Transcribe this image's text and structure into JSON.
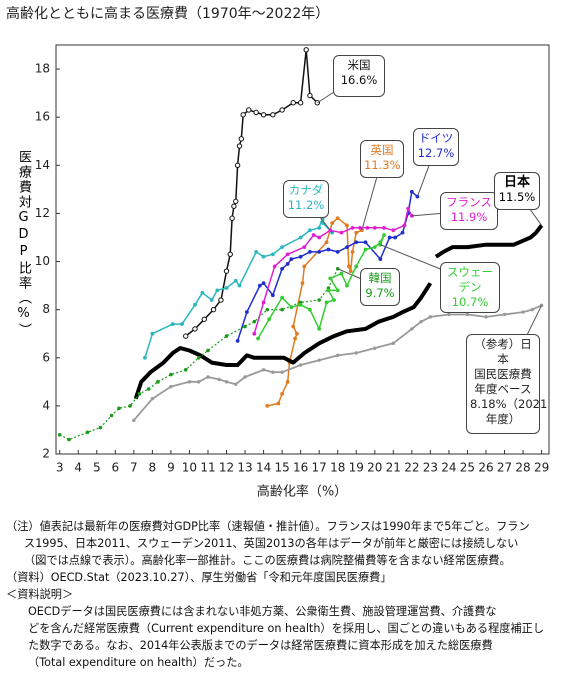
{
  "chart_data": {
    "type": "line",
    "title": "高齢化とともに高まる医療費（1970年～2022年）",
    "x_label": "高齢化率（%）",
    "y_label": "医療費対GDP比率（%）",
    "xlim": [
      2.8,
      29.4
    ],
    "xticks": [
      3,
      4,
      5,
      6,
      7,
      8,
      9,
      10,
      11,
      12,
      13,
      14,
      15,
      16,
      17,
      18,
      19,
      20,
      21,
      22,
      23,
      24,
      25,
      26,
      27,
      28,
      29
    ],
    "ylim": [
      2,
      19
    ],
    "yticks": [
      2,
      4,
      6,
      8,
      10,
      12,
      14,
      16,
      18
    ],
    "series": [
      {
        "name": "米国",
        "color": "#111111",
        "x": [
          9.8,
          10.3,
          10.8,
          11.3,
          11.7,
          12.0,
          12.2,
          12.3,
          12.4,
          12.5,
          12.6,
          12.7,
          12.8,
          12.9,
          13.2,
          13.6,
          14.0,
          14.5,
          15.0,
          15.6,
          16.0,
          16.3,
          16.5,
          16.9
        ],
        "values": [
          6.9,
          7.2,
          7.6,
          8.0,
          8.4,
          9.6,
          10.3,
          11.8,
          12.3,
          12.5,
          14.0,
          14.8,
          15.1,
          16.1,
          16.3,
          16.2,
          16.1,
          16.1,
          16.3,
          16.6,
          16.6,
          18.8,
          16.9,
          16.6
        ],
        "end_label": {
          "value": 16.6,
          "label": "16.6%"
        }
      },
      {
        "name": "英国",
        "color": "#e07b20",
        "x": [
          14.2,
          14.8,
          15.0,
          15.3,
          15.4,
          15.7,
          15.8,
          15.6,
          16.1,
          16.2,
          17.4,
          17.7,
          18.0,
          18.5,
          18.6,
          18.7,
          18.8,
          19.0,
          19.3
        ],
        "values": [
          4.0,
          4.1,
          4.5,
          5.0,
          5.8,
          6.8,
          7.0,
          7.3,
          9.1,
          9.8,
          10.8,
          11.6,
          11.8,
          11.5,
          9.8,
          9.6,
          10.4,
          11.2,
          11.3
        ],
        "end_label": {
          "value": 11.3,
          "label": "11.3%"
        }
      },
      {
        "name": "ドイツ",
        "color": "#1f2fd0",
        "x": [
          12.6,
          13.1,
          13.8,
          14.0,
          14.5,
          15.0,
          15.3,
          15.5,
          16.0,
          16.5,
          17.0,
          17.5,
          18.0,
          18.5,
          19.0,
          19.5,
          20.3,
          20.8,
          21.1,
          21.5,
          21.8,
          22.0,
          22.3
        ],
        "values": [
          6.7,
          7.9,
          9.0,
          9.1,
          8.6,
          9.7,
          9.9,
          10.1,
          10.2,
          10.4,
          10.4,
          10.5,
          10.4,
          10.6,
          10.8,
          10.8,
          10.1,
          11.0,
          11.0,
          11.2,
          12.0,
          12.9,
          12.7
        ],
        "end_label": {
          "value": 12.7,
          "label": "12.7%"
        }
      },
      {
        "name": "カナダ",
        "color": "#2bb7c0",
        "x": [
          7.6,
          8.0,
          9.1,
          9.6,
          10.3,
          10.7,
          11.2,
          11.5,
          12.0,
          12.5,
          12.7,
          13.6,
          14.0,
          14.5,
          15.0,
          16.0,
          16.5,
          17.0,
          17.4,
          17.2,
          17.7
        ],
        "values": [
          6.0,
          7.0,
          7.4,
          7.4,
          8.2,
          8.7,
          8.4,
          8.8,
          8.9,
          9.2,
          9.0,
          10.4,
          10.2,
          10.3,
          10.6,
          11.0,
          11.3,
          11.4,
          12.4,
          11.6,
          11.2
        ],
        "end_label": {
          "value": 11.2,
          "label": "11.2%"
        }
      },
      {
        "name": "フランス",
        "color": "#e020d0",
        "x": [
          13.5,
          14.0,
          14.6,
          15.3,
          16.2,
          16.7,
          17.0,
          17.6,
          18.2,
          18.8,
          19.2,
          19.6,
          20.0,
          20.5,
          21.0,
          21.6,
          21.8,
          22.0
        ],
        "values": [
          7.0,
          8.3,
          9.8,
          10.3,
          10.6,
          11.1,
          11.0,
          11.3,
          11.2,
          11.4,
          11.4,
          11.4,
          11.4,
          11.4,
          11.3,
          11.5,
          12.2,
          11.9
        ],
        "end_label": {
          "value": 11.9,
          "label": "11.9%"
        }
      },
      {
        "name": "日本",
        "color": "#000000",
        "x": [
          7.1,
          7.4,
          7.9,
          8.6,
          9.1,
          9.5,
          10.0,
          10.6,
          11.2,
          12.0,
          12.6,
          13.1,
          13.5,
          14.1,
          14.6,
          15.1,
          15.6,
          16.2,
          17.0,
          17.8,
          18.5,
          19.5,
          20.2,
          21.0,
          21.5,
          22.1,
          22.5,
          23.0,
          23.15,
          23.3,
          23.7,
          24.2,
          25.0,
          26.0,
          27.0,
          27.5,
          28.1,
          28.4,
          28.7,
          29.0
        ],
        "values": [
          4.3,
          5.0,
          5.4,
          5.8,
          6.2,
          6.4,
          6.3,
          6.1,
          5.8,
          5.7,
          5.7,
          6.1,
          6.0,
          6.0,
          6.0,
          6.0,
          5.8,
          6.2,
          6.6,
          6.9,
          7.1,
          7.2,
          7.5,
          7.7,
          7.9,
          8.1,
          8.5,
          9.1,
          null,
          10.2,
          10.4,
          10.6,
          10.6,
          10.7,
          10.7,
          10.7,
          10.9,
          11.0,
          11.2,
          11.5
        ],
        "end_label": {
          "value": 11.5,
          "label": "11.5%"
        }
      },
      {
        "name": "韓国",
        "color": "#1a9a1a",
        "x": [
          3.0,
          3.5,
          4.5,
          5.2,
          5.8,
          6.2,
          6.8,
          7.3,
          7.8,
          8.3,
          9.0,
          9.8,
          10.5,
          11.0,
          12.0,
          13.0,
          13.5,
          14.2,
          15.0,
          16.0,
          17.0,
          17.5,
          18.0
        ],
        "values": [
          2.8,
          2.6,
          2.9,
          3.1,
          3.6,
          3.9,
          4.0,
          4.5,
          4.7,
          5.0,
          5.3,
          5.5,
          6.0,
          6.3,
          6.9,
          7.3,
          7.5,
          8.0,
          8.0,
          8.3,
          8.4,
          8.9,
          9.7
        ],
        "end_label": {
          "value": 9.7,
          "label": "9.7%"
        }
      },
      {
        "name": "スウェーデン",
        "color": "#33cc33",
        "x": [
          13.7,
          14.3,
          15.0,
          15.5,
          16.0,
          16.5,
          17.0,
          17.4,
          17.8,
          17.5,
          18.0,
          17.6,
          18.2,
          18.5,
          19.0,
          19.5,
          20.0,
          20.3,
          20.5,
          20.3
        ],
        "values": [
          6.8,
          7.6,
          8.5,
          8.1,
          8.2,
          8.0,
          7.2,
          8.3,
          8.4,
          8.8,
          8.8,
          9.3,
          9.5,
          9.0,
          9.8,
          10.5,
          10.6,
          10.8,
          11.1,
          10.7
        ],
        "end_label": {
          "value": 10.7,
          "label": "10.7%"
        }
      },
      {
        "name": "（参考）日本",
        "name_lines": [
          "国民医療費",
          "年度ベース"
        ],
        "color": "#999999",
        "x": [
          7.0,
          8.0,
          9.0,
          10.0,
          10.5,
          11.0,
          11.6,
          12.0,
          12.5,
          13.0,
          14.0,
          14.5,
          15.0,
          16.0,
          17.0,
          18.0,
          19.0,
          20.0,
          21.0,
          22.0,
          22.5,
          23.0,
          24.0,
          25.0,
          26.0,
          27.0,
          28.0,
          28.5,
          29.0
        ],
        "values": [
          3.4,
          4.3,
          4.8,
          5.0,
          5.0,
          5.2,
          5.1,
          5.0,
          4.9,
          5.2,
          5.5,
          5.4,
          5.4,
          5.7,
          5.9,
          6.1,
          6.2,
          6.4,
          6.6,
          7.2,
          7.5,
          7.7,
          7.8,
          7.8,
          7.7,
          7.8,
          7.9,
          8.0,
          8.18
        ],
        "end_label": {
          "value": 8.18,
          "label": "8.18%（2021年度）"
        }
      }
    ],
    "notes": [
      "（注）値表記は最新年の医療費対GDP比率（速報値・推計値）。フランスは1990年まで5年ごと。フラン",
      "ス1995、日本2011、スウェーデン2011、英国2013の各年はデータが前年と厳密には接続しない",
      "（図では点線で表示）。高齢化率一部推計。ここの医療費は病院整備費等を含まない経常医療費。",
      "（資料）OECD.Stat（2023.10.27）、厚生労働省「令和元年度国民医療費」",
      "＜資料説明＞",
      "OECDデータは国民医療費には含まれない非処方薬、公衆衛生費、施設管理運営費、介護費な",
      "どを含んだ経常医療費（Current expenditure on health）を採用し、国ごとの違いもある程度補正し",
      "た数字である。なお、2014年公表版までのデータは経常医療費に資本形成を加えた総医療費",
      "（Total expenditure on health）だった。"
    ]
  }
}
